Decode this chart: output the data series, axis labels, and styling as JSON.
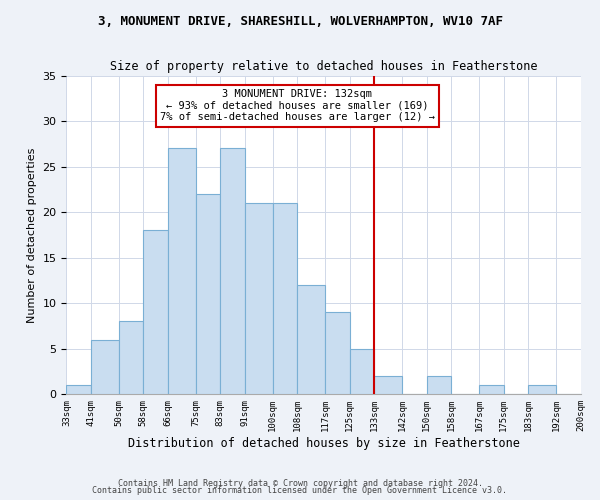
{
  "title1": "3, MONUMENT DRIVE, SHARESHILL, WOLVERHAMPTON, WV10 7AF",
  "title2": "Size of property relative to detached houses in Featherstone",
  "xlabel": "Distribution of detached houses by size in Featherstone",
  "ylabel": "Number of detached properties",
  "footer1": "Contains HM Land Registry data © Crown copyright and database right 2024.",
  "footer2": "Contains public sector information licensed under the Open Government Licence v3.0.",
  "bar_edges": [
    33,
    41,
    50,
    58,
    66,
    75,
    83,
    91,
    100,
    108,
    117,
    125,
    133,
    142,
    150,
    158,
    167,
    175,
    183,
    192,
    200
  ],
  "bar_heights": [
    1,
    6,
    8,
    18,
    27,
    22,
    27,
    21,
    21,
    12,
    9,
    5,
    2,
    0,
    2,
    0,
    1,
    0,
    1,
    0
  ],
  "bar_color": "#c9ddf0",
  "bar_edgecolor": "#7aafd4",
  "tick_labels": [
    "33sqm",
    "41sqm",
    "50sqm",
    "58sqm",
    "66sqm",
    "75sqm",
    "83sqm",
    "91sqm",
    "100sqm",
    "108sqm",
    "117sqm",
    "125sqm",
    "133sqm",
    "142sqm",
    "150sqm",
    "158sqm",
    "167sqm",
    "175sqm",
    "183sqm",
    "192sqm",
    "200sqm"
  ],
  "vline_x": 133,
  "vline_color": "#cc0000",
  "annotation_title": "3 MONUMENT DRIVE: 132sqm",
  "annotation_line1": "← 93% of detached houses are smaller (169)",
  "annotation_line2": "7% of semi-detached houses are larger (12) →",
  "annotation_box_color": "#ffffff",
  "annotation_box_edgecolor": "#cc0000",
  "ylim": [
    0,
    35
  ],
  "yticks": [
    0,
    5,
    10,
    15,
    20,
    25,
    30,
    35
  ],
  "bg_color": "#eef2f8",
  "plot_bg_color": "#ffffff",
  "grid_color": "#d0d8e8"
}
